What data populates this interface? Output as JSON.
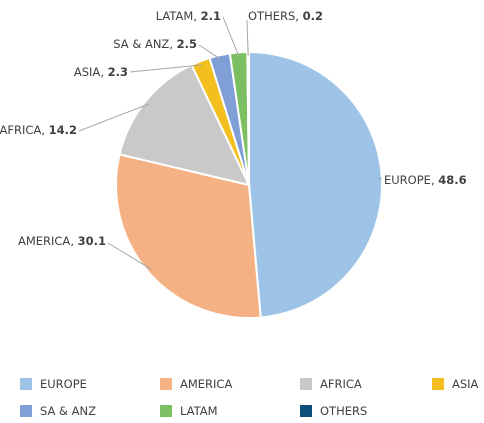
{
  "chart_data": {
    "type": "pie",
    "categories": [
      "EUROPE",
      "AMERICA",
      "AFRICA",
      "ASIA",
      "SA & ANZ",
      "LATAM",
      "OTHERS"
    ],
    "values": [
      48.6,
      30.1,
      14.2,
      2.3,
      2.5,
      2.1,
      0.2
    ],
    "colors": [
      "#9dc3e6",
      "#f4b183",
      "#c9c9c9",
      "#f2bf1f",
      "#7f9fd6",
      "#7cbf62",
      "#0d4e7a"
    ],
    "legend": "bottom"
  }
}
